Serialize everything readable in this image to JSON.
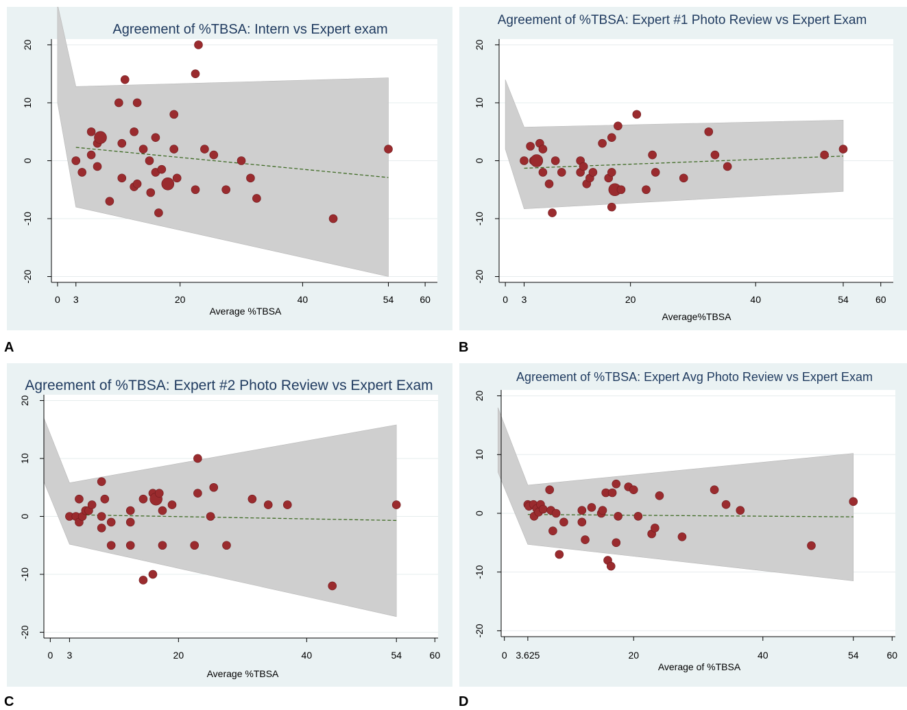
{
  "colors": {
    "panel_bg": "#eaf2f3",
    "plot_bg": "#ffffff",
    "grid": "#e6eced",
    "band": "#cfcfcf",
    "band_stroke": "#b7b7b7",
    "marker": "#9a2b2e",
    "marker_stroke": "#6e1a1d",
    "fit_line": "#3f6b25",
    "title_text": "#1f3a5f"
  },
  "chart_data": [
    {
      "panel_label": "A",
      "type": "scatter",
      "title": "Agreement of %TBSA: Intern vs Expert exam",
      "xlabel": "Average %TBSA",
      "ylabel": "",
      "xlim": [
        -1,
        62
      ],
      "ylim": [
        -21,
        21
      ],
      "xticks": [
        0,
        3,
        20,
        40,
        54,
        60
      ],
      "xtick_labels": [
        "0",
        "3",
        "20",
        "40",
        "54",
        "60"
      ],
      "yticks": [
        -20,
        -10,
        0,
        10,
        20
      ],
      "ytick_labels": [
        "-20",
        "-10",
        "0",
        "10",
        "20"
      ],
      "grid": true,
      "band": [
        [
          0,
          27
        ],
        [
          3,
          12.8
        ],
        [
          54,
          14.3
        ],
        [
          54,
          -20
        ],
        [
          3,
          -8
        ],
        [
          0,
          10
        ]
      ],
      "fit_line": [
        [
          3,
          2.3
        ],
        [
          54,
          -2.9
        ]
      ],
      "points": [
        {
          "x": 3,
          "y": 0,
          "big": false
        },
        {
          "x": 4,
          "y": -2,
          "big": false
        },
        {
          "x": 5.5,
          "y": 5,
          "big": false
        },
        {
          "x": 5.5,
          "y": 1,
          "big": false
        },
        {
          "x": 6.5,
          "y": -1,
          "big": false
        },
        {
          "x": 6.5,
          "y": 3,
          "big": false
        },
        {
          "x": 7,
          "y": 4,
          "big": true
        },
        {
          "x": 8.5,
          "y": -7,
          "big": false
        },
        {
          "x": 10,
          "y": 10,
          "big": false
        },
        {
          "x": 10.5,
          "y": 3,
          "big": false
        },
        {
          "x": 10.5,
          "y": -3,
          "big": false
        },
        {
          "x": 11,
          "y": 14,
          "big": false
        },
        {
          "x": 12.5,
          "y": 5,
          "big": false
        },
        {
          "x": 12.5,
          "y": -4.5,
          "big": false
        },
        {
          "x": 13,
          "y": 10,
          "big": false
        },
        {
          "x": 13,
          "y": -4,
          "big": false
        },
        {
          "x": 14,
          "y": 2,
          "big": false
        },
        {
          "x": 15,
          "y": 0,
          "big": false
        },
        {
          "x": 15.2,
          "y": -5.5,
          "big": false
        },
        {
          "x": 16,
          "y": 4,
          "big": false
        },
        {
          "x": 16,
          "y": -2,
          "big": false
        },
        {
          "x": 16.5,
          "y": -9,
          "big": false
        },
        {
          "x": 17,
          "y": -1.5,
          "big": false
        },
        {
          "x": 18,
          "y": -4,
          "big": true
        },
        {
          "x": 19,
          "y": 8,
          "big": false
        },
        {
          "x": 19,
          "y": 2,
          "big": false
        },
        {
          "x": 19.5,
          "y": -3,
          "big": false
        },
        {
          "x": 22.5,
          "y": 15,
          "big": false
        },
        {
          "x": 22.5,
          "y": -5,
          "big": false
        },
        {
          "x": 23,
          "y": 20,
          "big": false
        },
        {
          "x": 24,
          "y": 2,
          "big": false
        },
        {
          "x": 25.5,
          "y": 1,
          "big": false
        },
        {
          "x": 27.5,
          "y": -5,
          "big": false
        },
        {
          "x": 30,
          "y": 0,
          "big": false
        },
        {
          "x": 31.5,
          "y": -3,
          "big": false
        },
        {
          "x": 32.5,
          "y": -6.5,
          "big": false
        },
        {
          "x": 45,
          "y": -10,
          "big": false
        },
        {
          "x": 54,
          "y": 2,
          "big": false
        }
      ]
    },
    {
      "panel_label": "B",
      "type": "scatter",
      "title": "Agreement of %TBSA: Expert #1 Photo Review vs Expert Exam",
      "xlabel": "Average%TBSA",
      "ylabel": "",
      "xlim": [
        -1,
        62
      ],
      "ylim": [
        -21,
        21
      ],
      "xticks": [
        0,
        3,
        20,
        40,
        54,
        60
      ],
      "xtick_labels": [
        "0",
        "3",
        "20",
        "40",
        "54",
        "60"
      ],
      "yticks": [
        -20,
        -10,
        0,
        10,
        20
      ],
      "ytick_labels": [
        "-20",
        "-10",
        "0",
        "10",
        "20"
      ],
      "grid": true,
      "band": [
        [
          0,
          14
        ],
        [
          3,
          5.8
        ],
        [
          54,
          7
        ],
        [
          54,
          -5.3
        ],
        [
          3,
          -8.3
        ],
        [
          0,
          2
        ]
      ],
      "fit_line": [
        [
          3,
          -1.3
        ],
        [
          54,
          0.8
        ]
      ],
      "points": [
        {
          "x": 3,
          "y": 0,
          "big": false
        },
        {
          "x": 4,
          "y": 2.5,
          "big": false
        },
        {
          "x": 4.5,
          "y": 0,
          "big": false
        },
        {
          "x": 5,
          "y": 0,
          "big": true
        },
        {
          "x": 5.5,
          "y": 3,
          "big": false
        },
        {
          "x": 6,
          "y": 2,
          "big": false
        },
        {
          "x": 6,
          "y": -2,
          "big": false
        },
        {
          "x": 7,
          "y": -4,
          "big": false
        },
        {
          "x": 7.5,
          "y": -9,
          "big": false
        },
        {
          "x": 8,
          "y": 0,
          "big": false
        },
        {
          "x": 9,
          "y": -2,
          "big": false
        },
        {
          "x": 12,
          "y": 0,
          "big": false
        },
        {
          "x": 12,
          "y": -2,
          "big": false
        },
        {
          "x": 12.5,
          "y": -1,
          "big": false
        },
        {
          "x": 13,
          "y": -4,
          "big": false
        },
        {
          "x": 13.5,
          "y": -3,
          "big": false
        },
        {
          "x": 14,
          "y": -2,
          "big": false
        },
        {
          "x": 15.5,
          "y": 3,
          "big": false
        },
        {
          "x": 16.5,
          "y": -3,
          "big": false
        },
        {
          "x": 17,
          "y": 4,
          "big": false
        },
        {
          "x": 17,
          "y": -2,
          "big": false
        },
        {
          "x": 17,
          "y": -8,
          "big": false
        },
        {
          "x": 17.5,
          "y": -5,
          "big": true
        },
        {
          "x": 18,
          "y": 6,
          "big": false
        },
        {
          "x": 18.5,
          "y": -5,
          "big": false
        },
        {
          "x": 21,
          "y": 8,
          "big": false
        },
        {
          "x": 22.5,
          "y": -5,
          "big": false
        },
        {
          "x": 23.5,
          "y": 1,
          "big": false
        },
        {
          "x": 24,
          "y": -2,
          "big": false
        },
        {
          "x": 28.5,
          "y": -3,
          "big": false
        },
        {
          "x": 32.5,
          "y": 5,
          "big": false
        },
        {
          "x": 33.5,
          "y": 1,
          "big": false
        },
        {
          "x": 35.5,
          "y": -1,
          "big": false
        },
        {
          "x": 51,
          "y": 1,
          "big": false
        },
        {
          "x": 54,
          "y": 2,
          "big": false
        }
      ]
    },
    {
      "panel_label": "C",
      "type": "scatter",
      "title": "Agreement of %TBSA: Expert #2 Photo Review vs Expert Exam",
      "xlabel": "Average %TBSA",
      "ylabel": "",
      "xlim": [
        -1,
        60.5
      ],
      "ylim": [
        -21,
        21
      ],
      "xticks": [
        0,
        3,
        20,
        40,
        54,
        60
      ],
      "xtick_labels": [
        "0",
        "3",
        "20",
        "40",
        "54",
        "60"
      ],
      "yticks": [
        -20,
        -10,
        0,
        10,
        20
      ],
      "ytick_labels": [
        "-20",
        "-10",
        "0",
        "10",
        "20"
      ],
      "grid": true,
      "band": [
        [
          -1,
          17
        ],
        [
          3,
          5.8
        ],
        [
          54,
          15.8
        ],
        [
          54,
          -17.3
        ],
        [
          3,
          -4.8
        ],
        [
          -1,
          6
        ]
      ],
      "fit_line": [
        [
          3,
          0.3
        ],
        [
          54,
          -0.7
        ]
      ],
      "points": [
        {
          "x": 3,
          "y": 0,
          "big": false
        },
        {
          "x": 4,
          "y": 0,
          "big": false
        },
        {
          "x": 4.5,
          "y": -1,
          "big": false
        },
        {
          "x": 4.5,
          "y": 3,
          "big": false
        },
        {
          "x": 5,
          "y": 0,
          "big": false
        },
        {
          "x": 5.5,
          "y": 1,
          "big": false
        },
        {
          "x": 6,
          "y": 1,
          "big": false
        },
        {
          "x": 6.5,
          "y": 2,
          "big": false
        },
        {
          "x": 8,
          "y": 0,
          "big": false
        },
        {
          "x": 8,
          "y": -2,
          "big": false
        },
        {
          "x": 8,
          "y": 6,
          "big": false
        },
        {
          "x": 8.5,
          "y": 3,
          "big": false
        },
        {
          "x": 9.5,
          "y": -1,
          "big": false
        },
        {
          "x": 9.5,
          "y": -5,
          "big": false
        },
        {
          "x": 12.5,
          "y": 1,
          "big": false
        },
        {
          "x": 12.5,
          "y": -1,
          "big": false
        },
        {
          "x": 12.5,
          "y": -5,
          "big": false
        },
        {
          "x": 14.5,
          "y": 3,
          "big": false
        },
        {
          "x": 14.5,
          "y": -11,
          "big": false
        },
        {
          "x": 16,
          "y": 4,
          "big": false
        },
        {
          "x": 16,
          "y": -10,
          "big": false
        },
        {
          "x": 16.5,
          "y": 3,
          "big": true
        },
        {
          "x": 17,
          "y": 4,
          "big": false
        },
        {
          "x": 17.5,
          "y": 1,
          "big": false
        },
        {
          "x": 17.5,
          "y": -5,
          "big": false
        },
        {
          "x": 19,
          "y": 2,
          "big": false
        },
        {
          "x": 22.5,
          "y": -5,
          "big": false
        },
        {
          "x": 23,
          "y": 10,
          "big": false
        },
        {
          "x": 23,
          "y": 4,
          "big": false
        },
        {
          "x": 25,
          "y": 0,
          "big": false
        },
        {
          "x": 25.5,
          "y": 5,
          "big": false
        },
        {
          "x": 27.5,
          "y": -5,
          "big": false
        },
        {
          "x": 31.5,
          "y": 3,
          "big": false
        },
        {
          "x": 34,
          "y": 2,
          "big": false
        },
        {
          "x": 37,
          "y": 2,
          "big": false
        },
        {
          "x": 44,
          "y": -12,
          "big": false
        },
        {
          "x": 54,
          "y": 2,
          "big": false
        }
      ]
    },
    {
      "panel_label": "D",
      "type": "scatter",
      "title": "Agreement of %TBSA: Expert Avg Photo Review vs Expert Exam",
      "xlabel": "Average of %TBSA",
      "ylabel": "",
      "xlim": [
        -0.5,
        60.5
      ],
      "ylim": [
        -21,
        21
      ],
      "xticks": [
        0,
        3.625,
        20,
        40,
        54,
        60
      ],
      "xtick_labels": [
        "0",
        "3.625",
        "20",
        "40",
        "54",
        "60"
      ],
      "yticks": [
        -20,
        -10,
        0,
        10,
        20
      ],
      "ytick_labels": [
        "-20",
        "-10",
        "0",
        "10",
        "20"
      ],
      "grid": true,
      "band": [
        [
          -1,
          18
        ],
        [
          3.625,
          4.8
        ],
        [
          54,
          10.2
        ],
        [
          54,
          -11.5
        ],
        [
          3.625,
          -5.3
        ],
        [
          -1,
          7
        ]
      ],
      "fit_line": [
        [
          3.625,
          -0.2
        ],
        [
          54,
          -0.6
        ]
      ],
      "points": [
        {
          "x": 3.625,
          "y": 1.5,
          "big": false
        },
        {
          "x": 3.8,
          "y": 1.2,
          "big": false
        },
        {
          "x": 4.5,
          "y": 1.5,
          "big": false
        },
        {
          "x": 4.6,
          "y": -0.5,
          "big": false
        },
        {
          "x": 5,
          "y": 0.8,
          "big": false
        },
        {
          "x": 5.3,
          "y": 0.2,
          "big": false
        },
        {
          "x": 5.6,
          "y": 1.5,
          "big": false
        },
        {
          "x": 6,
          "y": 0.7,
          "big": false
        },
        {
          "x": 7,
          "y": 4,
          "big": false
        },
        {
          "x": 7.2,
          "y": 0.5,
          "big": false
        },
        {
          "x": 7.5,
          "y": -3,
          "big": false
        },
        {
          "x": 8,
          "y": 0,
          "big": false
        },
        {
          "x": 8.5,
          "y": -7,
          "big": false
        },
        {
          "x": 9.2,
          "y": -1.5,
          "big": false
        },
        {
          "x": 12,
          "y": 0.5,
          "big": false
        },
        {
          "x": 12,
          "y": -1.5,
          "big": false
        },
        {
          "x": 12.5,
          "y": -4.5,
          "big": false
        },
        {
          "x": 13.5,
          "y": 1,
          "big": false
        },
        {
          "x": 15,
          "y": 0,
          "big": false
        },
        {
          "x": 15.2,
          "y": 0.5,
          "big": false
        },
        {
          "x": 15.7,
          "y": 3.5,
          "big": false
        },
        {
          "x": 16,
          "y": -8,
          "big": false
        },
        {
          "x": 16.5,
          "y": -9,
          "big": false
        },
        {
          "x": 16.7,
          "y": 3.5,
          "big": false
        },
        {
          "x": 17.3,
          "y": 5,
          "big": false
        },
        {
          "x": 17.3,
          "y": -5,
          "big": false
        },
        {
          "x": 17.6,
          "y": -0.5,
          "big": false
        },
        {
          "x": 19.2,
          "y": 4.5,
          "big": false
        },
        {
          "x": 20,
          "y": 4,
          "big": false
        },
        {
          "x": 20.7,
          "y": -0.5,
          "big": false
        },
        {
          "x": 22.8,
          "y": -3.5,
          "big": false
        },
        {
          "x": 23.3,
          "y": -2.5,
          "big": false
        },
        {
          "x": 24,
          "y": 3,
          "big": false
        },
        {
          "x": 27.5,
          "y": -4,
          "big": false
        },
        {
          "x": 32.5,
          "y": 4,
          "big": false
        },
        {
          "x": 34.3,
          "y": 1.5,
          "big": false
        },
        {
          "x": 36.5,
          "y": 0.5,
          "big": false
        },
        {
          "x": 47.5,
          "y": -5.5,
          "big": false
        },
        {
          "x": 54,
          "y": 2,
          "big": false
        }
      ]
    }
  ]
}
